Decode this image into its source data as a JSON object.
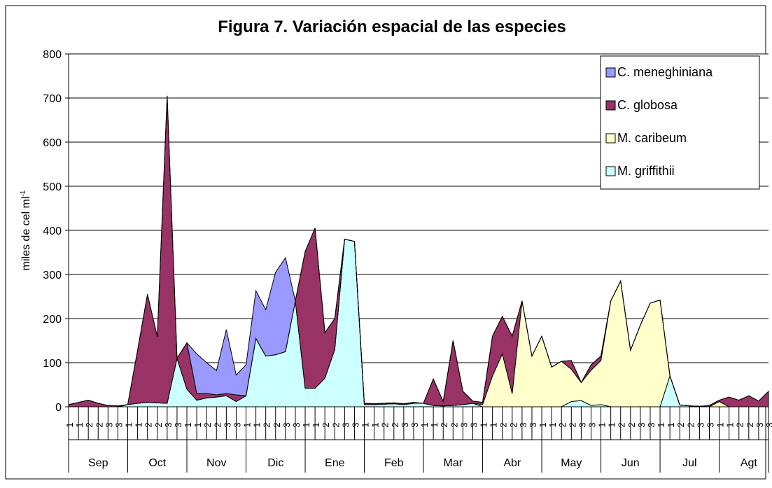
{
  "chart_data": {
    "type": "stacked_area",
    "title": "Figura 7. Variación espacial de las especies",
    "ylabel": "miles de cel ml",
    "ylabel_sup": "-1",
    "ylim": [
      0,
      800
    ],
    "yticks": [
      0,
      100,
      200,
      300,
      400,
      500,
      600,
      700,
      800
    ],
    "grid": true,
    "legend": "top-right",
    "categories": [
      "1",
      "1",
      "2",
      "2",
      "3",
      "3",
      "1",
      "1",
      "2",
      "2",
      "3",
      "3",
      "1",
      "1",
      "2",
      "2",
      "3",
      "3",
      "1",
      "1",
      "2",
      "2",
      "3",
      "3",
      "1",
      "1",
      "2",
      "2",
      "3",
      "3",
      "1",
      "1",
      "2",
      "2",
      "3",
      "3",
      "1",
      "1",
      "2",
      "2",
      "3",
      "3",
      "1",
      "1",
      "2",
      "2",
      "3",
      "3",
      "1",
      "1",
      "2",
      "2",
      "3",
      "3",
      "1",
      "1",
      "2",
      "2",
      "3",
      "3",
      "1",
      "1",
      "2",
      "2",
      "3",
      "3",
      "1",
      "1",
      "2",
      "2",
      "3",
      "3"
    ],
    "groups": [
      "Sep",
      "Oct",
      "Nov",
      "Dic",
      "Ene",
      "Feb",
      "Mar",
      "Abr",
      "May",
      "Jun",
      "Jul",
      "Agt"
    ],
    "series": [
      {
        "name": "M. griffithii",
        "color": "#ccffff",
        "values": [
          0,
          0,
          0,
          0,
          0,
          0,
          5,
          8,
          10,
          9,
          8,
          110,
          40,
          15,
          20,
          22,
          25,
          12,
          25,
          155,
          115,
          118,
          125,
          240,
          42,
          42,
          65,
          130,
          380,
          375,
          5,
          5,
          6,
          7,
          5,
          8,
          8,
          3,
          2,
          3,
          5,
          8,
          0,
          0,
          0,
          0,
          0,
          0,
          0,
          0,
          0,
          12,
          14,
          3,
          5,
          0,
          0,
          0,
          0,
          0,
          0,
          70,
          4,
          2,
          1,
          0,
          0,
          0,
          0,
          0,
          0,
          0
        ]
      },
      {
        "name": "M. caribeum",
        "color": "#ffffcc",
        "values": [
          0,
          0,
          0,
          0,
          0,
          0,
          0,
          0,
          0,
          0,
          0,
          0,
          0,
          0,
          0,
          0,
          0,
          0,
          0,
          0,
          0,
          0,
          0,
          0,
          0,
          0,
          0,
          0,
          0,
          0,
          0,
          0,
          0,
          0,
          0,
          0,
          0,
          0,
          0,
          0,
          0,
          0,
          5,
          70,
          120,
          30,
          240,
          115,
          160,
          90,
          103,
          73,
          41,
          80,
          100,
          240,
          285,
          128,
          185,
          235,
          242,
          0,
          0,
          0,
          0,
          0,
          12,
          0,
          0,
          0,
          0,
          0
        ]
      },
      {
        "name": "C. globosa",
        "color": "#993366",
        "values": [
          5,
          10,
          15,
          8,
          3,
          2,
          0,
          120,
          245,
          150,
          697,
          0,
          105,
          15,
          10,
          5,
          5,
          15,
          0,
          0,
          0,
          0,
          0,
          0,
          310,
          363,
          103,
          70,
          0,
          0,
          3,
          2,
          2,
          2,
          2,
          2,
          0,
          60,
          10,
          147,
          30,
          5,
          5,
          90,
          85,
          130,
          0,
          0,
          0,
          0,
          0,
          20,
          0,
          12,
          10,
          0,
          0,
          0,
          0,
          0,
          0,
          0,
          0,
          0,
          0,
          3,
          3,
          22,
          15,
          25,
          13,
          35
        ]
      },
      {
        "name": "C. meneghiniana",
        "color": "#9999ff",
        "values": [
          0,
          0,
          0,
          0,
          0,
          0,
          0,
          0,
          0,
          0,
          0,
          0,
          0,
          90,
          70,
          55,
          145,
          45,
          70,
          108,
          105,
          187,
          213,
          0,
          0,
          0,
          0,
          0,
          0,
          0,
          0,
          0,
          0,
          0,
          0,
          0,
          0,
          0,
          0,
          0,
          0,
          0,
          0,
          0,
          0,
          0,
          0,
          0,
          0,
          0,
          0,
          0,
          0,
          0,
          0,
          0,
          0,
          0,
          0,
          0,
          0,
          0,
          0,
          0,
          0,
          0,
          0,
          0,
          0,
          0,
          0,
          0
        ]
      }
    ]
  }
}
